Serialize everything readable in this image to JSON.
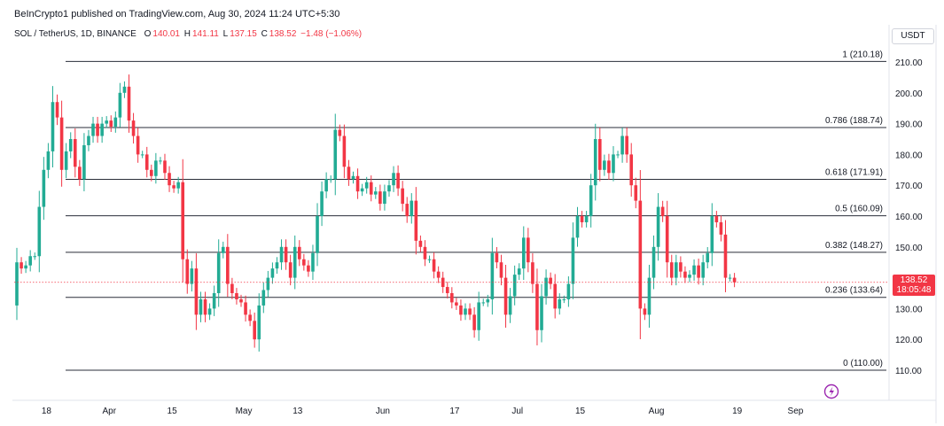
{
  "header": {
    "published": "BeInCrypto1 published on TradingView.com, Aug 30, 2024 11:24 UTC+5:30",
    "symbol": "SOL / TetherUS, 1D, BINANCE",
    "open_label": "O",
    "open": "140.01",
    "high_label": "H",
    "high": "141.11",
    "low_label": "L",
    "low": "137.15",
    "close_label": "C",
    "close": "138.52",
    "change": "−1.48 (−1.06%)"
  },
  "currency_button": "USDT",
  "last_price": {
    "price": "138.52",
    "countdown": "18:05:48"
  },
  "colors": {
    "up": "#22ab94",
    "down": "#f23645",
    "fib_line": "#2a2e39",
    "price_line": "#f23645",
    "accent": "#9c27b0"
  },
  "icons": {
    "logo": "tradingview-bolt-icon"
  },
  "chart_data": {
    "type": "candlestick",
    "symbol": "SOL / TetherUS",
    "interval": "1D",
    "ylim": [
      105,
      215
    ],
    "y_ticks": [
      "210.00",
      "200.00",
      "190.00",
      "180.00",
      "170.00",
      "160.00",
      "150.00",
      "140.00",
      "130.00",
      "120.00",
      "110.00"
    ],
    "x_ticks": [
      {
        "label": "18",
        "date": "2024-03-18"
      },
      {
        "label": "Apr",
        "date": "2024-04-01"
      },
      {
        "label": "15",
        "date": "2024-04-15"
      },
      {
        "label": "May",
        "date": "2024-05-01"
      },
      {
        "label": "13",
        "date": "2024-05-13"
      },
      {
        "label": "Jun",
        "date": "2024-06-01"
      },
      {
        "label": "17",
        "date": "2024-06-17"
      },
      {
        "label": "Jul",
        "date": "2024-07-01"
      },
      {
        "label": "15",
        "date": "2024-07-15"
      },
      {
        "label": "Aug",
        "date": "2024-08-01"
      },
      {
        "label": "19",
        "date": "2024-08-19"
      },
      {
        "label": "Sep",
        "date": "2024-09-01"
      }
    ],
    "start_date": "2024-03-11",
    "fib_levels": [
      {
        "label": "1 (210.18)",
        "value": 210.18
      },
      {
        "label": "0.786 (188.74)",
        "value": 188.74
      },
      {
        "label": "0.618 (171.91)",
        "value": 171.91
      },
      {
        "label": "0.5 (160.09)",
        "value": 160.09
      },
      {
        "label": "0.382 (148.27)",
        "value": 148.27
      },
      {
        "label": "0.236 (133.64)",
        "value": 133.64
      },
      {
        "label": "0 (110.00)",
        "value": 110.0
      }
    ],
    "close_start": 131,
    "closes": [
      145,
      143,
      144,
      147,
      147,
      163,
      175,
      181,
      197,
      192,
      175,
      181,
      185,
      176,
      172,
      183,
      186,
      190,
      186,
      190,
      191,
      189,
      192,
      200,
      202,
      191,
      186,
      180,
      180,
      175,
      173,
      178,
      178,
      174,
      170,
      169,
      171,
      146,
      138,
      143,
      128,
      133,
      128,
      130,
      135,
      148,
      150,
      138,
      135,
      133,
      132,
      128,
      126,
      120,
      131,
      136,
      140,
      143,
      145,
      150,
      145,
      140,
      150,
      146,
      144,
      142,
      148,
      160,
      168,
      172,
      172,
      188,
      186,
      176,
      172,
      173,
      168,
      169,
      171,
      167,
      168,
      164,
      168,
      170,
      174,
      169,
      164,
      160,
      165,
      152,
      150,
      146,
      146,
      142,
      140,
      137,
      135,
      132,
      131,
      128,
      130,
      128,
      123,
      132,
      132,
      133,
      148,
      145,
      140,
      128,
      134,
      141,
      143,
      153,
      145,
      138,
      123,
      134,
      140,
      138,
      130,
      133,
      133,
      138,
      153,
      160,
      158,
      160,
      170,
      185,
      175,
      178,
      174,
      180,
      180,
      186,
      180,
      170,
      165,
      130,
      128,
      140,
      150,
      163,
      160,
      145,
      140,
      145,
      142,
      140,
      141,
      144,
      140,
      145,
      148,
      160,
      158,
      154,
      140,
      140,
      138.52
    ]
  }
}
